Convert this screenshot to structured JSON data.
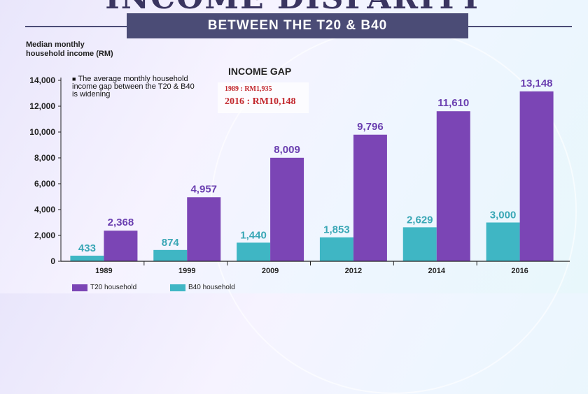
{
  "title": "INCOME DISPARITY",
  "subtitle": "BETWEEN THE T20 & B40",
  "y_axis_label": "Median monthly household income (RM)",
  "note": "The average monthly household income gap between the T20 & B40 is widening",
  "income_gap": {
    "title": "INCOME GAP",
    "line_1989": "1989 : RM1,935",
    "line_2016": "2016 : RM10,148"
  },
  "colors": {
    "t20": "#7b45b5",
    "b40": "#3fb6c4",
    "t20_label": "#6a3fb0",
    "b40_label": "#3aa7b6",
    "title_bar": "#4b4c76",
    "gap_text": "#c2272d"
  },
  "chart_data": {
    "type": "bar",
    "categories": [
      "1989",
      "1999",
      "2009",
      "2012",
      "2014",
      "2016"
    ],
    "series": [
      {
        "name": "B40 household",
        "values": [
          433,
          874,
          1440,
          1853,
          2629,
          3000
        ]
      },
      {
        "name": "T20 household",
        "values": [
          2368,
          4957,
          8009,
          9796,
          11610,
          13148
        ]
      }
    ],
    "value_labels": {
      "B40 household": [
        "433",
        "874",
        "1,440",
        "1,853",
        "2,629",
        "3,000"
      ],
      "T20 household": [
        "2,368",
        "4,957",
        "8,009",
        "9,796",
        "11,610",
        "13,148"
      ]
    },
    "y_ticks": [
      "0",
      "2,000",
      "4,000",
      "6,000",
      "8,000",
      "10,000",
      "12,000",
      "14,000"
    ],
    "ylim": [
      0,
      14000
    ],
    "legend": [
      "T20 household",
      "B40 household"
    ],
    "legend_position": "bottom-left",
    "grid": false
  }
}
